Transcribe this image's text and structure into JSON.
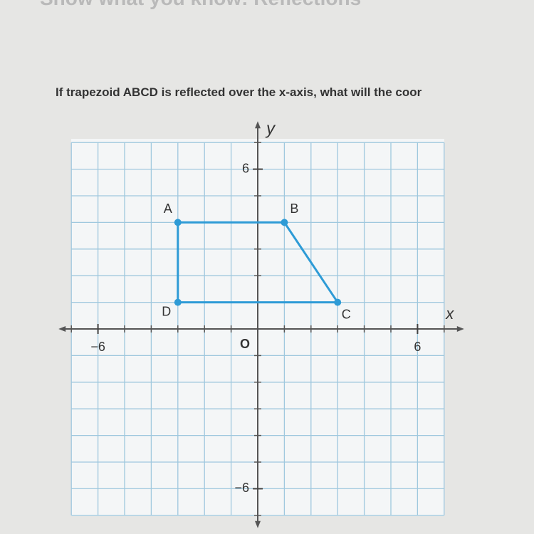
{
  "header": {
    "title": "Show what you know: Reflections"
  },
  "question": "If trapezoid ABCD is reflected over the x-axis, what will the coor",
  "graph": {
    "x_label": "x",
    "y_label": "y",
    "origin_label": "O",
    "xlim": [
      -7,
      7
    ],
    "ylim": [
      -7,
      7
    ],
    "xticks": [
      {
        "value": -6,
        "label": "−6"
      },
      6
    ],
    "yticks": [
      6,
      {
        "value": -6,
        "label": "−6"
      }
    ],
    "color": "#2e9bd6",
    "points": [
      {
        "label": "A",
        "x": -3,
        "y": 4
      },
      {
        "label": "B",
        "x": 1,
        "y": 4
      },
      {
        "label": "C",
        "x": 3,
        "y": 1
      },
      {
        "label": "D",
        "x": -3,
        "y": 1
      }
    ]
  }
}
